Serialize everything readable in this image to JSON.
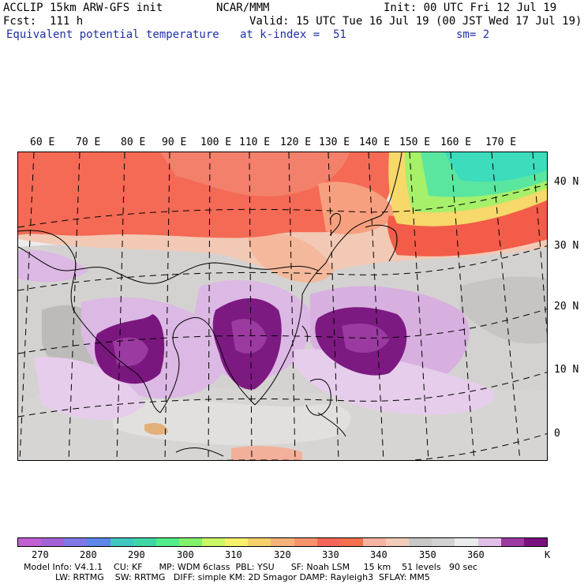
{
  "header": {
    "model_title": "ACCLIP 15km ARW-GFS init",
    "org": "NCAR/MMM",
    "init": "Init: 00 UTC Fri 12 Jul 19",
    "fcst": "Fcst:  111 h",
    "valid": "Valid: 15 UTC Tue 16 Jul 19 (00 JST Wed 17 Jul 19)",
    "field": "Equivalent potential temperature",
    "level": "at k-index =  51",
    "smooth": "sm= 2"
  },
  "map": {
    "lon_labels": [
      "60 E",
      "70 E",
      "80 E",
      "90 E",
      "100 E",
      "110 E",
      "120 E",
      "130 E",
      "140 E",
      "150 E",
      "160 E",
      "170 E"
    ],
    "lat_labels": [
      "40 N",
      "30 N",
      "20 N",
      "10 N",
      "0"
    ],
    "background": "#ececec"
  },
  "colorbar": {
    "colors": [
      "#c25fd2",
      "#a362d6",
      "#7f78e4",
      "#5c86e8",
      "#3ec8c0",
      "#3ed8a6",
      "#52ec88",
      "#82f26c",
      "#cbf766",
      "#f7f06a",
      "#f5d26a",
      "#f7b27a",
      "#f7936c",
      "#f5665a",
      "#f2704e",
      "#f6b4a0",
      "#f2ccb8",
      "#cac8c6",
      "#d2d2d2",
      "#ececec",
      "#e0c0e8",
      "#9b3aa0",
      "#7a0f7e"
    ],
    "tick_labels": [
      "270",
      "280",
      "290",
      "300",
      "310",
      "320",
      "330",
      "340",
      "350",
      "360",
      "K"
    ],
    "unit": "K"
  },
  "footer": {
    "line1": "Model Info: V4.1.1    CU: KF      MP: WDM 6class  PBL: YSU      SF: Noah LSM     15 km    51 levels   90 sec",
    "line2": "LW: RRTMG    SW: RRTMG   DIFF: simple KM: 2D Smagor DAMP: Rayleigh3  SFLAY: MM5"
  }
}
